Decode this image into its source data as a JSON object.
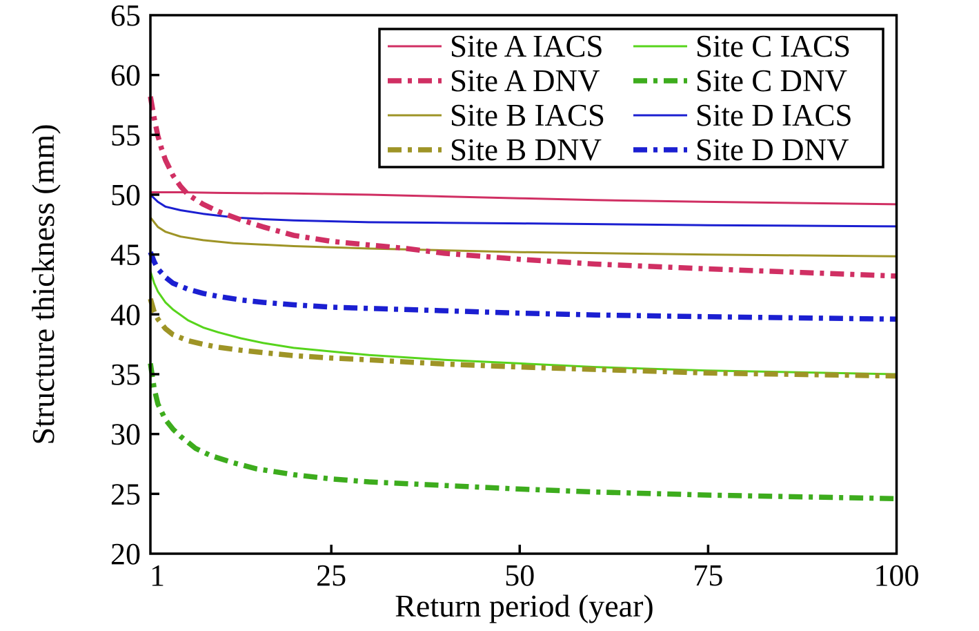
{
  "chart_data": {
    "type": "line",
    "title": "",
    "xlabel": "Return period (year)",
    "ylabel": "Structure thickness (mm)",
    "xlim": [
      1,
      100
    ],
    "ylim": [
      20,
      65
    ],
    "xticks": [
      1,
      25,
      50,
      75,
      100
    ],
    "yticks": [
      20,
      25,
      30,
      35,
      40,
      45,
      50,
      55,
      60,
      65
    ],
    "grid": false,
    "frame": true,
    "legend": {
      "position": "top-center-inside",
      "columns": 2,
      "order": "column-major",
      "entries": [
        "Site A IACS",
        "Site A DNV",
        "Site B IACS",
        "Site B DNV",
        "Site C IACS",
        "Site C DNV",
        "Site D IACS",
        "Site D DNV"
      ]
    },
    "series": [
      {
        "name": "Site A IACS",
        "site": "A",
        "rule": "IACS",
        "color": "#d02f63",
        "style": "solid",
        "width": 3,
        "points": [
          [
            1,
            50.2
          ],
          [
            5,
            50.2
          ],
          [
            10,
            50.15
          ],
          [
            20,
            50.1
          ],
          [
            30,
            50.0
          ],
          [
            40,
            49.85
          ],
          [
            50,
            49.7
          ],
          [
            60,
            49.55
          ],
          [
            75,
            49.4
          ],
          [
            100,
            49.2
          ]
        ]
      },
      {
        "name": "Site A DNV",
        "site": "A",
        "rule": "DNV",
        "color": "#d02f63",
        "style": "dashdot",
        "width": 7.5,
        "points": [
          [
            1,
            58.2
          ],
          [
            1.5,
            56.4
          ],
          [
            2,
            54.9
          ],
          [
            2.5,
            53.8
          ],
          [
            3,
            52.9
          ],
          [
            4,
            51.6
          ],
          [
            5,
            50.7
          ],
          [
            6,
            50.0
          ],
          [
            8,
            49.2
          ],
          [
            10,
            48.6
          ],
          [
            13,
            47.9
          ],
          [
            16,
            47.3
          ],
          [
            20,
            46.6
          ],
          [
            25,
            46.1
          ],
          [
            30,
            45.8
          ],
          [
            35,
            45.5
          ],
          [
            40,
            45.1
          ],
          [
            50,
            44.6
          ],
          [
            60,
            44.2
          ],
          [
            75,
            43.8
          ],
          [
            100,
            43.2
          ]
        ]
      },
      {
        "name": "Site B IACS",
        "site": "B",
        "rule": "IACS",
        "color": "#9e9426",
        "style": "solid",
        "width": 3,
        "points": [
          [
            1,
            48.1
          ],
          [
            2,
            47.3
          ],
          [
            3,
            46.9
          ],
          [
            5,
            46.5
          ],
          [
            8,
            46.2
          ],
          [
            12,
            45.95
          ],
          [
            20,
            45.7
          ],
          [
            30,
            45.5
          ],
          [
            40,
            45.35
          ],
          [
            50,
            45.2
          ],
          [
            75,
            45.0
          ],
          [
            100,
            44.85
          ]
        ]
      },
      {
        "name": "Site B DNV",
        "site": "B",
        "rule": "DNV",
        "color": "#9e9426",
        "style": "dashdot",
        "width": 7.5,
        "points": [
          [
            1,
            41.3
          ],
          [
            1.5,
            40.2
          ],
          [
            2,
            39.6
          ],
          [
            3,
            38.8
          ],
          [
            4,
            38.3
          ],
          [
            6,
            37.8
          ],
          [
            8,
            37.5
          ],
          [
            10,
            37.25
          ],
          [
            13,
            37.0
          ],
          [
            16,
            36.8
          ],
          [
            20,
            36.55
          ],
          [
            25,
            36.35
          ],
          [
            30,
            36.2
          ],
          [
            40,
            35.85
          ],
          [
            50,
            35.6
          ],
          [
            60,
            35.4
          ],
          [
            75,
            35.1
          ],
          [
            100,
            34.85
          ]
        ]
      },
      {
        "name": "Site C IACS",
        "site": "C",
        "rule": "IACS",
        "color": "#57d41c",
        "style": "solid",
        "width": 3,
        "points": [
          [
            1,
            43.6
          ],
          [
            1.5,
            42.6
          ],
          [
            2,
            41.9
          ],
          [
            3,
            41.0
          ],
          [
            4,
            40.4
          ],
          [
            6,
            39.5
          ],
          [
            8,
            38.9
          ],
          [
            10,
            38.5
          ],
          [
            13,
            38.0
          ],
          [
            16,
            37.6
          ],
          [
            20,
            37.2
          ],
          [
            25,
            36.9
          ],
          [
            30,
            36.6
          ],
          [
            40,
            36.2
          ],
          [
            50,
            35.9
          ],
          [
            60,
            35.6
          ],
          [
            75,
            35.3
          ],
          [
            100,
            35.0
          ]
        ]
      },
      {
        "name": "Site C DNV",
        "site": "C",
        "rule": "DNV",
        "color": "#3dac1d",
        "style": "dashdot",
        "width": 7.5,
        "points": [
          [
            1,
            35.9
          ],
          [
            1.5,
            33.8
          ],
          [
            2,
            32.5
          ],
          [
            3,
            31.2
          ],
          [
            4,
            30.4
          ],
          [
            5,
            29.8
          ],
          [
            7,
            28.8
          ],
          [
            9,
            28.2
          ],
          [
            12,
            27.6
          ],
          [
            15,
            27.1
          ],
          [
            20,
            26.6
          ],
          [
            25,
            26.25
          ],
          [
            30,
            26.0
          ],
          [
            40,
            25.7
          ],
          [
            50,
            25.4
          ],
          [
            60,
            25.15
          ],
          [
            75,
            24.9
          ],
          [
            100,
            24.6
          ]
        ]
      },
      {
        "name": "Site D IACS",
        "site": "D",
        "rule": "IACS",
        "color": "#1b1fd1",
        "style": "solid",
        "width": 3,
        "points": [
          [
            1,
            50.0
          ],
          [
            2,
            49.4
          ],
          [
            3,
            49.0
          ],
          [
            5,
            48.7
          ],
          [
            8,
            48.4
          ],
          [
            12,
            48.1
          ],
          [
            16,
            47.95
          ],
          [
            20,
            47.85
          ],
          [
            30,
            47.7
          ],
          [
            40,
            47.65
          ],
          [
            50,
            47.6
          ],
          [
            75,
            47.45
          ],
          [
            100,
            47.35
          ]
        ]
      },
      {
        "name": "Site D DNV",
        "site": "D",
        "rule": "DNV",
        "color": "#1b1fd1",
        "style": "dashdot",
        "width": 7.5,
        "points": [
          [
            1,
            45.2
          ],
          [
            1.5,
            44.4
          ],
          [
            2,
            43.8
          ],
          [
            3,
            43.1
          ],
          [
            4,
            42.6
          ],
          [
            6,
            42.1
          ],
          [
            8,
            41.75
          ],
          [
            10,
            41.5
          ],
          [
            13,
            41.2
          ],
          [
            16,
            41.0
          ],
          [
            20,
            40.8
          ],
          [
            25,
            40.6
          ],
          [
            30,
            40.5
          ],
          [
            40,
            40.3
          ],
          [
            50,
            40.1
          ],
          [
            60,
            39.95
          ],
          [
            75,
            39.8
          ],
          [
            100,
            39.6
          ]
        ]
      }
    ]
  },
  "style": {
    "axis_color": "#000000",
    "background": "#ffffff",
    "frame_width": 3.5,
    "tick_length": 13,
    "dashdot_pattern": "20 9 6 9"
  }
}
